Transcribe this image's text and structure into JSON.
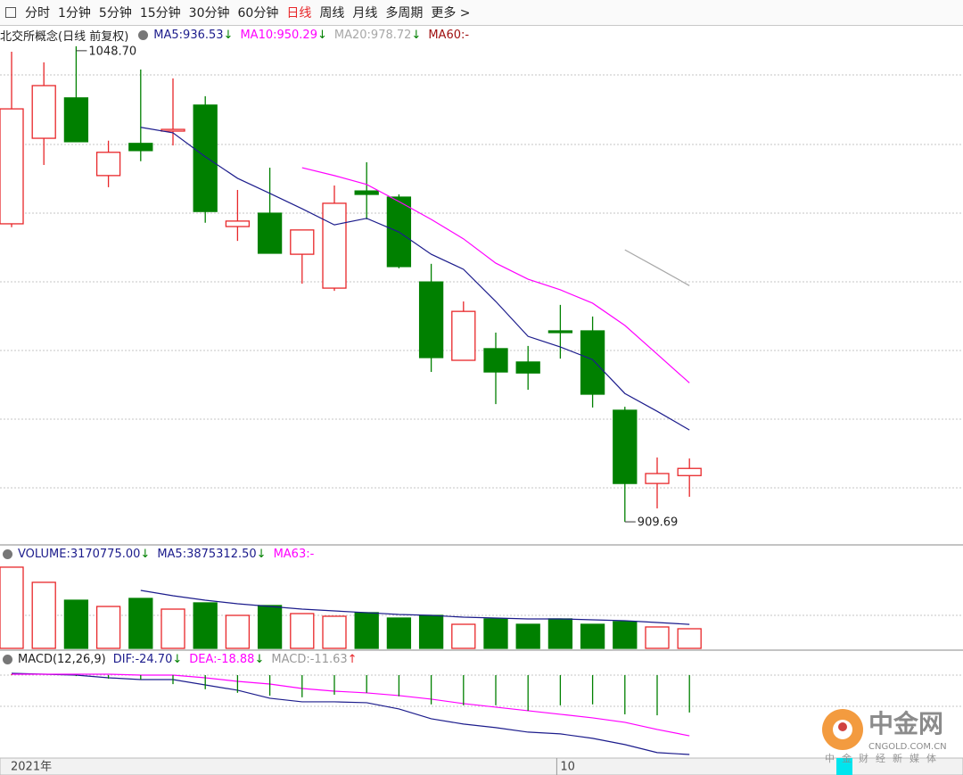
{
  "toolbar": {
    "tabs": [
      {
        "label": "分时",
        "active": false
      },
      {
        "label": "1分钟",
        "active": false
      },
      {
        "label": "5分钟",
        "active": false
      },
      {
        "label": "15分钟",
        "active": false
      },
      {
        "label": "30分钟",
        "active": false
      },
      {
        "label": "60分钟",
        "active": false
      },
      {
        "label": "日线",
        "active": true
      },
      {
        "label": "周线",
        "active": false
      },
      {
        "label": "月线",
        "active": false
      },
      {
        "label": "多周期",
        "active": false
      },
      {
        "label": "更多 >",
        "active": false
      }
    ]
  },
  "watermark": {
    "logo": "中金网",
    "domain": "CNGOLD.COM.CN",
    "slogan": "中金财经新媒体"
  },
  "chart_data": [
    {
      "type": "candlestick",
      "title": "北交所概念(日线 前复权)",
      "up_color": "#e8272a",
      "down_color": "#008000",
      "ylim": [
        903.2,
        1054.4
      ],
      "categories": [
        "2021年",
        null,
        null,
        null,
        null,
        null,
        null,
        null,
        null,
        null,
        null,
        null,
        null,
        null,
        null,
        null,
        null,
        "10",
        null,
        null,
        null,
        null
      ],
      "series": [
        {
          "type": "candlestick",
          "open": [
            996.8,
            1021.8,
            1033.6,
            1010.9,
            1020.3,
            1023.9,
            1031.5,
            996.0,
            999.9,
            987.9,
            978.0,
            1006.4,
            1004.6,
            979.8,
            956.9,
            960.3,
            956.4,
            965.5,
            965.5,
            942.3,
            920.9,
            923.2
          ],
          "high": [
            1047.1,
            1044.0,
            1048.7,
            1021.1,
            1041.9,
            1039.3,
            1034.1,
            1006.7,
            1013.2,
            995.0,
            1008.0,
            1014.8,
            1005.4,
            985.1,
            974.1,
            965.0,
            961.1,
            973.1,
            969.7,
            943.3,
            928.5,
            928.2
          ],
          "low": [
            995.8,
            1014.0,
            1020.8,
            1007.5,
            1015.1,
            1019.7,
            997.1,
            991.8,
            988.2,
            979.3,
            977.2,
            998.1,
            983.8,
            953.5,
            956.9,
            944.1,
            948.3,
            957.4,
            943.1,
            909.69,
            913.6,
            917.0
          ],
          "close": [
            1030.4,
            1037.2,
            1020.8,
            1017.7,
            1018.2,
            1024.4,
            1000.4,
            997.6,
            988.2,
            995.0,
            1002.8,
            1005.4,
            984.3,
            957.7,
            971.2,
            953.5,
            953.2,
            965.0,
            947.0,
            920.9,
            923.8,
            925.3
          ]
        },
        {
          "type": "line",
          "name": "MA5:",
          "readout": "936.53",
          "arrow": "↓",
          "arrow_color": "#008000",
          "color": "#1c1c8c",
          "values": [
            null,
            null,
            null,
            null,
            1025.0,
            1023.4,
            1016.4,
            1010.1,
            1005.7,
            1001.2,
            996.5,
            998.4,
            994.4,
            987.9,
            983.5,
            974.1,
            963.9,
            960.8,
            957.1,
            947.2,
            942.0,
            936.53
          ]
        },
        {
          "type": "line",
          "name": "MA10:",
          "readout": "950.29",
          "arrow": "↓",
          "arrow_color": "#008000",
          "color": "#ff00ff",
          "values": [
            null,
            null,
            null,
            null,
            null,
            null,
            null,
            null,
            null,
            1013.2,
            1010.9,
            1008.3,
            1003.3,
            998.1,
            992.4,
            985.3,
            980.6,
            977.5,
            973.6,
            967.1,
            958.7,
            950.29
          ]
        },
        {
          "type": "line",
          "name": "MA20:",
          "readout": "978.72",
          "arrow": "↓",
          "arrow_color": "#008000",
          "color": "#a8a8a8",
          "values": [
            null,
            null,
            null,
            null,
            null,
            null,
            null,
            null,
            null,
            null,
            null,
            null,
            null,
            null,
            null,
            null,
            null,
            null,
            null,
            989.2,
            984.0,
            978.72
          ]
        },
        {
          "type": "line",
          "name": "MA60:",
          "readout": "-",
          "color": "#a01010",
          "values": [
            null,
            null,
            null,
            null,
            null,
            null,
            null,
            null,
            null,
            null,
            null,
            null,
            null,
            null,
            null,
            null,
            null,
            null,
            null,
            null,
            null,
            null
          ]
        }
      ],
      "annotations": [
        {
          "value": 1048.7,
          "label": "1048.70"
        },
        {
          "value": 909.69,
          "label": "909.69"
        }
      ]
    },
    {
      "type": "bar",
      "ylim": [
        0,
        16140000
      ],
      "series": [
        {
          "type": "bar",
          "name": "VOLUME:",
          "readout": "3170775.00",
          "arrow": "↓",
          "arrow_color": "#008000",
          "color": "#1c1c8c",
          "values": [
            13120000,
            10670000,
            7780000,
            6770000,
            8070000,
            6340000,
            7350000,
            5330000,
            6920000,
            5620000,
            5190000,
            5770000,
            4900000,
            5330000,
            3890000,
            4760000,
            3890000,
            4760000,
            3890000,
            4320000,
            3460000,
            3170775
          ]
        },
        {
          "type": "line",
          "name": "MA5:",
          "readout": "3875312.50",
          "arrow": "↓",
          "arrow_color": "#008000",
          "color": "#1c1c8c",
          "values": [
            null,
            null,
            null,
            null,
            9370000,
            8500000,
            7780000,
            7210000,
            6770000,
            6340000,
            6050000,
            5770000,
            5480000,
            5330000,
            5040000,
            4900000,
            4760000,
            4760000,
            4610000,
            4470000,
            4180000,
            3875312.5
          ]
        },
        {
          "type": "line",
          "name": "MA63:",
          "readout": "-",
          "color": "#ff00ff",
          "values": [
            null,
            null,
            null,
            null,
            null,
            null,
            null,
            null,
            null,
            null,
            null,
            null,
            null,
            null,
            null,
            null,
            null,
            null,
            null,
            null,
            null,
            null
          ]
        }
      ]
    },
    {
      "type": "macd",
      "title": "MACD(12,26,9)",
      "ylim": [
        -25.8,
        6.1
      ],
      "up_color": "#e8272a",
      "down_color": "#008000",
      "series": [
        {
          "type": "line",
          "name": "DIF:",
          "readout": "-24.70",
          "arrow": "↓",
          "arrow_color": "#008000",
          "color": "#1c1c8c",
          "values": [
            0.55,
            0.28,
            0,
            -0.83,
            -1.39,
            -1.39,
            -3.05,
            -4.71,
            -7.2,
            -8.31,
            -8.31,
            -8.59,
            -10.53,
            -13.57,
            -15.23,
            -16.34,
            -17.73,
            -18.28,
            -19.67,
            -21.61,
            -24.1,
            -24.7
          ]
        },
        {
          "type": "line",
          "name": "DEA:",
          "readout": "-18.88",
          "arrow": "↓",
          "arrow_color": "#008000",
          "color": "#ff00ff",
          "values": [
            0.28,
            0.28,
            0.28,
            0.28,
            0,
            0,
            -0.83,
            -1.94,
            -2.77,
            -4.16,
            -4.99,
            -5.54,
            -6.37,
            -7.48,
            -8.86,
            -9.97,
            -11.08,
            -12.19,
            -13.3,
            -14.68,
            -16.9,
            -18.88
          ]
        },
        {
          "type": "bar",
          "name": "MACD:",
          "readout": "-11.63",
          "arrow": "↑",
          "arrow_color": "#e8272a",
          "color": "#999999",
          "values": [
            0.3,
            0,
            -0.3,
            -1.1,
            -1.4,
            -2.8,
            -4.4,
            -5.5,
            -6.4,
            -6.9,
            -6.1,
            -5.5,
            -6.6,
            -9.1,
            -9.4,
            -9.4,
            -11.1,
            -9.4,
            -9.1,
            -12.2,
            -12.5,
            -11.63
          ]
        }
      ]
    }
  ]
}
